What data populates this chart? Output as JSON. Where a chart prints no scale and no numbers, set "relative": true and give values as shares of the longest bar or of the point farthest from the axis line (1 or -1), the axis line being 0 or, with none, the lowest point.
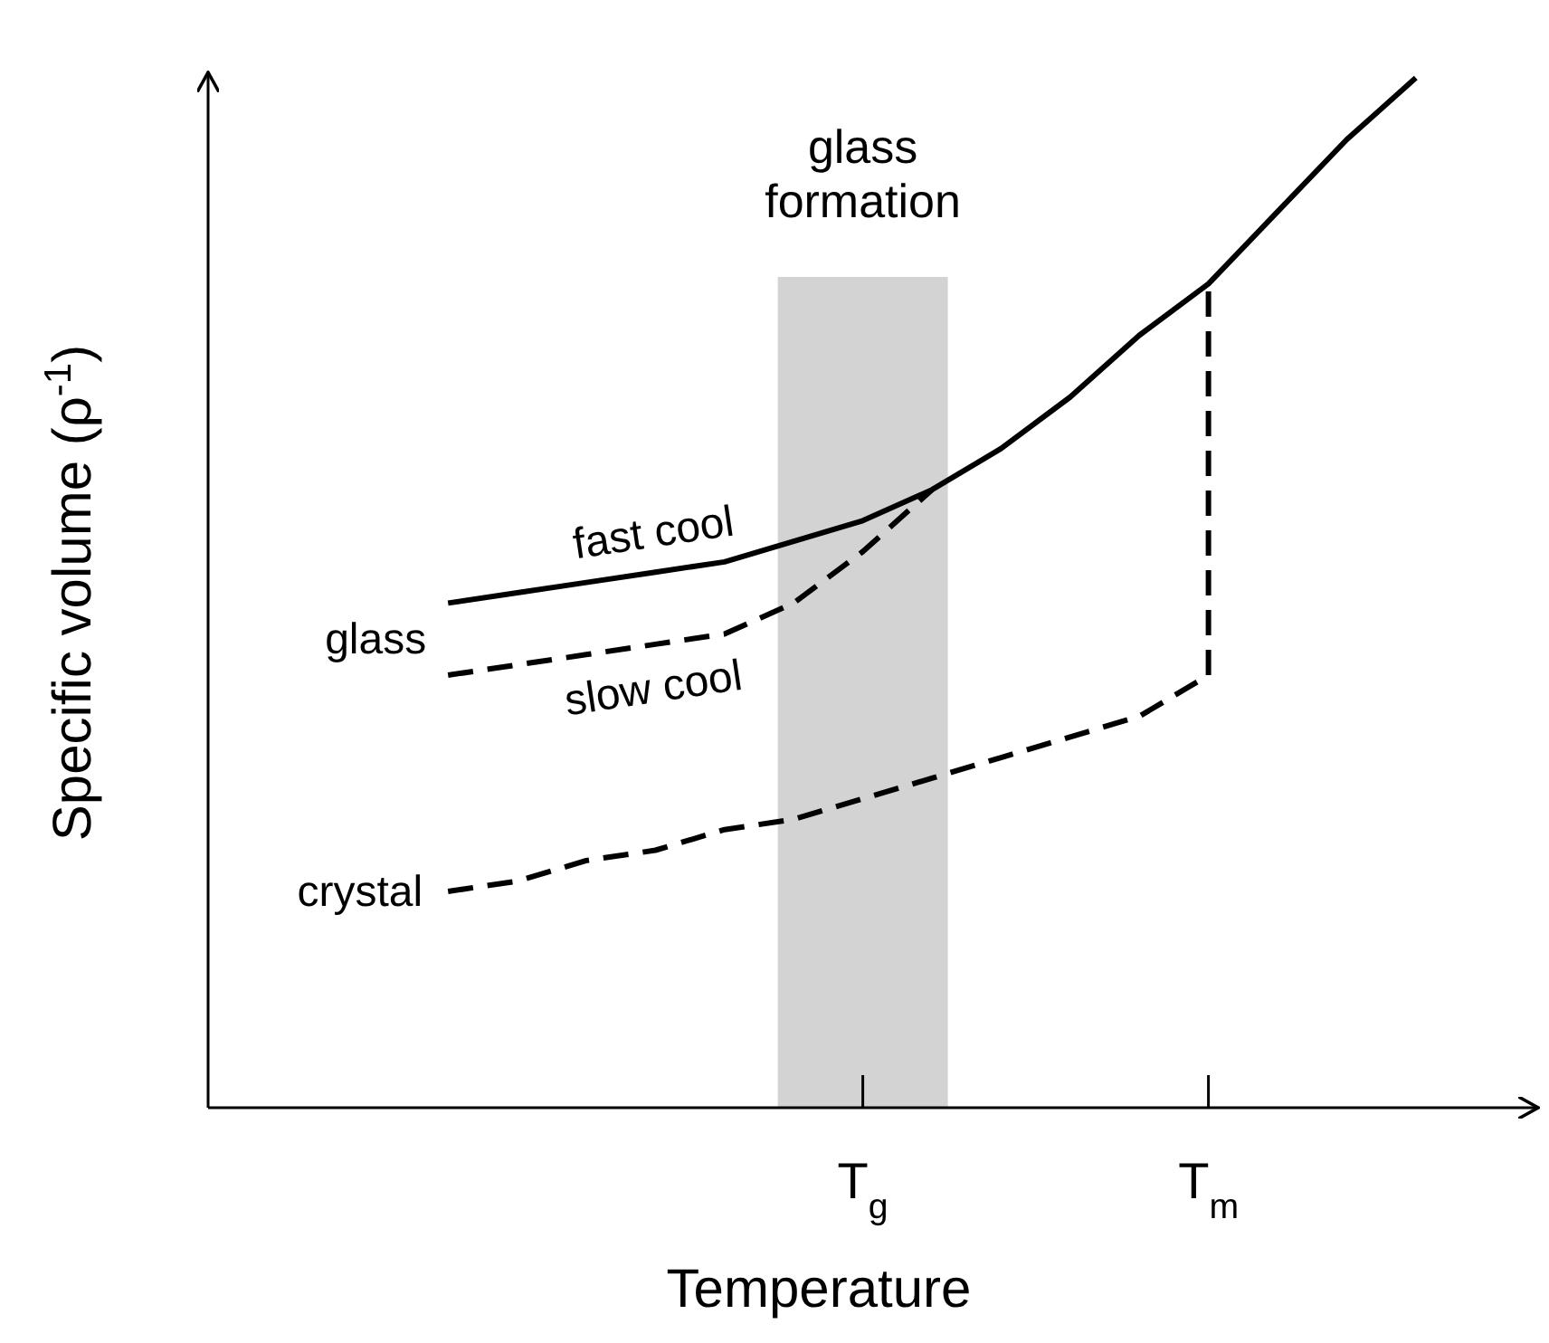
{
  "chart_data": {
    "type": "line",
    "relative": true,
    "xlabel": "Temperature",
    "ylabel": "Specific volume (ρ$^{-1}$)",
    "categories": [
      null,
      null,
      null,
      null,
      null,
      null,
      null,
      null,
      null,
      "T$_{g}$",
      null,
      null,
      null,
      null,
      "T$_{m}$",
      null,
      null,
      null
    ],
    "series": [
      {
        "name": "fast cool",
        "color": "#000000",
        "line_style": "solid",
        "values": [
          null,
          null,
          null,
          0.49,
          0.5,
          0.51,
          0.52,
          0.53,
          0.55,
          0.57,
          0.6,
          0.64,
          0.69,
          0.75,
          0.8,
          0.87,
          0.94,
          1
        ]
      },
      {
        "name": "slow cool",
        "color": "#000000",
        "line_style": "dashed",
        "values": [
          null,
          null,
          null,
          0.42,
          0.43,
          0.44,
          0.45,
          0.46,
          0.49,
          0.54,
          0.6,
          null,
          null,
          null,
          null,
          null,
          null,
          null
        ]
      },
      {
        "name": "crystal",
        "color": "#000000",
        "line_style": "dashed",
        "values": [
          null,
          null,
          null,
          0.21,
          0.22,
          0.24,
          0.25,
          0.27,
          0.28,
          0.3,
          0.32,
          0.34,
          0.36,
          0.38,
          0.42,
          null,
          null,
          null
        ]
      }
    ],
    "ref_lines": [
      {
        "axis": "x",
        "value": "T$_{m}$",
        "line_style": "dashed",
        "color": "#000000"
      }
    ],
    "annotations": [
      "glass",
      "glass formation"
    ],
    "grid": false,
    "legend": false
  }
}
